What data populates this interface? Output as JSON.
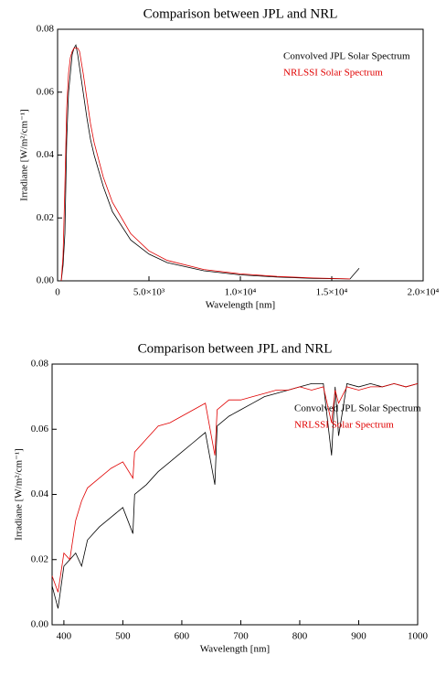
{
  "chart_data": [
    {
      "type": "line",
      "title": "Comparison between JPL and NRL",
      "xlabel": "Wavelength [nm]",
      "ylabel": "Irradiane [W/m²/cm⁻¹]",
      "x": [
        200,
        300,
        400,
        500,
        600,
        700,
        800,
        900,
        1000,
        1100,
        1200,
        1400,
        1600,
        1800,
        2000,
        2500,
        3000,
        4000,
        5000,
        6000,
        8000,
        10000,
        12000,
        14000,
        16000,
        16500
      ],
      "series": [
        {
          "name": "Convolved JPL Solar Spectrum",
          "color": "#000000",
          "values": [
            0,
            0.005,
            0.015,
            0.045,
            0.06,
            0.066,
            0.072,
            0.074,
            0.075,
            0.072,
            0.068,
            0.06,
            0.052,
            0.045,
            0.04,
            0.03,
            0.022,
            0.013,
            0.0085,
            0.0058,
            0.0032,
            0.0019,
            0.0012,
            0.0008,
            0.0006,
            0.004
          ]
        },
        {
          "name": "NRLSSI Solar Spectrum",
          "color": "#e00000",
          "values": [
            0,
            0.008,
            0.03,
            0.055,
            0.066,
            0.071,
            0.073,
            0.074,
            0.074,
            0.074,
            0.073,
            0.066,
            0.058,
            0.05,
            0.044,
            0.033,
            0.025,
            0.015,
            0.0095,
            0.0065,
            0.0036,
            0.0022,
            0.0014,
            0.0009,
            0.0006,
            null
          ]
        }
      ],
      "xlim": [
        0,
        20000
      ],
      "xticks": [
        0,
        {
          "value": 5000,
          "label": "5.0×10³"
        },
        {
          "value": 10000,
          "label": "1.0×10⁴"
        },
        {
          "value": 15000,
          "label": "1.5×10⁴"
        },
        {
          "value": 20000,
          "label": "2.0×10⁴"
        }
      ],
      "ylim": [
        0,
        0.08
      ],
      "yticks": [
        {
          "value": 0,
          "label": "0.00"
        },
        0.02,
        0.04,
        0.06,
        0.08
      ],
      "legend": "upper right"
    },
    {
      "type": "line",
      "title": "Comparison between JPL and NRL",
      "xlabel": "Wavelength [nm]",
      "ylabel": "Irradiane [W/m²/cm⁻¹]",
      "x": [
        380,
        390,
        400,
        410,
        420,
        430,
        440,
        460,
        480,
        500,
        517,
        520,
        540,
        560,
        580,
        600,
        620,
        640,
        656,
        660,
        680,
        700,
        720,
        740,
        760,
        780,
        800,
        820,
        840,
        854,
        860,
        866,
        880,
        900,
        920,
        940,
        960,
        980,
        1000
      ],
      "series": [
        {
          "name": "Convolved JPL Solar Spectrum",
          "color": "#000000",
          "values": [
            0.012,
            0.005,
            0.018,
            0.02,
            0.022,
            0.018,
            0.026,
            0.03,
            0.033,
            0.036,
            0.028,
            0.04,
            0.043,
            0.047,
            0.05,
            0.053,
            0.056,
            0.059,
            0.043,
            0.061,
            0.064,
            0.066,
            0.068,
            0.07,
            0.071,
            0.072,
            0.073,
            0.074,
            0.074,
            0.052,
            0.073,
            0.058,
            0.074,
            0.073,
            0.074,
            0.073,
            0.074,
            0.073,
            0.074
          ]
        },
        {
          "name": "NRLSSI Solar Spectrum",
          "color": "#e00000",
          "values": [
            0.015,
            0.01,
            0.022,
            0.02,
            0.032,
            0.038,
            0.042,
            0.045,
            0.048,
            0.05,
            0.045,
            0.053,
            0.057,
            0.061,
            0.062,
            0.064,
            0.066,
            0.068,
            0.052,
            0.066,
            0.069,
            0.069,
            0.07,
            0.071,
            0.072,
            0.072,
            0.073,
            0.072,
            0.073,
            0.062,
            0.072,
            0.068,
            0.073,
            0.072,
            0.073,
            0.073,
            0.074,
            0.073,
            0.074
          ]
        }
      ],
      "xlim": [
        380,
        1000
      ],
      "xticks": [
        400,
        500,
        600,
        700,
        800,
        900,
        1000
      ],
      "ylim": [
        0,
        0.08
      ],
      "yticks": [
        {
          "value": 0,
          "label": "0.00"
        },
        0.02,
        0.04,
        0.06,
        0.08
      ],
      "legend": "upper right"
    }
  ]
}
